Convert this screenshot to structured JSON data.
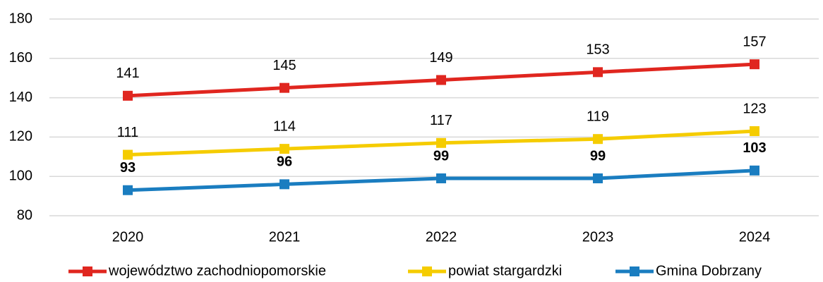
{
  "chart_data": {
    "type": "line",
    "categories": [
      "2020",
      "2021",
      "2022",
      "2023",
      "2024"
    ],
    "series": [
      {
        "name": "województwo zachodniopomorskie",
        "color": "#e0261f",
        "values": [
          141,
          145,
          149,
          153,
          157
        ]
      },
      {
        "name": "powiat stargardzki",
        "color": "#f5cc00",
        "values": [
          111,
          114,
          117,
          119,
          123
        ]
      },
      {
        "name": "Gmina Dobrzany",
        "color": "#1a7dc0",
        "values": [
          93,
          96,
          99,
          99,
          103
        ]
      }
    ],
    "ylim": [
      80,
      180
    ],
    "yticks": [
      80,
      100,
      120,
      140,
      160,
      180
    ],
    "grid": true,
    "legend": "bottom"
  }
}
